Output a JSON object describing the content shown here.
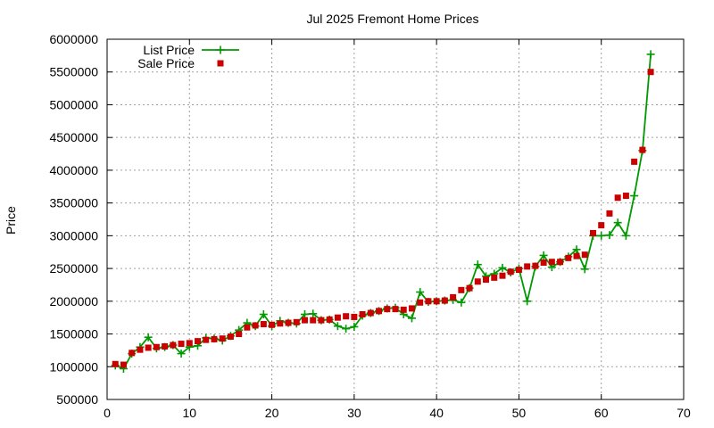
{
  "chart_data": {
    "type": "line",
    "title": "Jul 2025 Fremont Home Prices",
    "xlabel": "",
    "ylabel": "Price",
    "xlim": [
      0,
      70
    ],
    "ylim": [
      500000,
      6000000
    ],
    "xticks": [
      0,
      10,
      20,
      30,
      40,
      50,
      60,
      70
    ],
    "yticks": [
      500000,
      1000000,
      1500000,
      2000000,
      2500000,
      3000000,
      3500000,
      4000000,
      4500000,
      5000000,
      5500000,
      6000000
    ],
    "grid": true,
    "legend_position": "top-left",
    "series": [
      {
        "name": "List Price",
        "style": "line-with-plus-markers",
        "color": "#009900",
        "x": [
          1,
          2,
          3,
          4,
          5,
          6,
          7,
          8,
          9,
          10,
          11,
          12,
          13,
          14,
          15,
          16,
          17,
          18,
          19,
          20,
          21,
          22,
          23,
          24,
          25,
          26,
          27,
          28,
          29,
          30,
          31,
          32,
          33,
          34,
          35,
          36,
          37,
          38,
          39,
          40,
          41,
          42,
          43,
          44,
          45,
          46,
          47,
          48,
          49,
          50,
          51,
          52,
          53,
          54,
          55,
          56,
          57,
          58,
          59,
          60,
          61,
          62,
          63,
          64,
          65,
          66
        ],
        "values": [
          1020000,
          970000,
          1200000,
          1300000,
          1450000,
          1280000,
          1300000,
          1330000,
          1200000,
          1300000,
          1320000,
          1440000,
          1430000,
          1400000,
          1470000,
          1560000,
          1670000,
          1620000,
          1800000,
          1620000,
          1700000,
          1670000,
          1660000,
          1800000,
          1810000,
          1710000,
          1720000,
          1620000,
          1580000,
          1610000,
          1780000,
          1820000,
          1850000,
          1890000,
          1900000,
          1800000,
          1740000,
          2140000,
          1990000,
          2000000,
          2010000,
          2020000,
          1980000,
          2200000,
          2560000,
          2380000,
          2420000,
          2510000,
          2440000,
          2500000,
          2000000,
          2530000,
          2700000,
          2520000,
          2600000,
          2680000,
          2790000,
          2490000,
          3000000,
          3000000,
          3010000,
          3200000,
          3000000,
          3610000,
          4300000,
          5770000
        ]
      },
      {
        "name": "Sale Price",
        "style": "square-markers",
        "color": "#cc0000",
        "x": [
          1,
          2,
          3,
          4,
          5,
          6,
          7,
          8,
          9,
          10,
          11,
          12,
          13,
          14,
          15,
          16,
          17,
          18,
          19,
          20,
          21,
          22,
          23,
          24,
          25,
          26,
          27,
          28,
          29,
          30,
          31,
          32,
          33,
          34,
          35,
          36,
          37,
          38,
          39,
          40,
          41,
          42,
          43,
          44,
          45,
          46,
          47,
          48,
          49,
          50,
          51,
          52,
          53,
          54,
          55,
          56,
          57,
          58,
          59,
          60,
          61,
          62,
          63,
          64,
          65,
          66
        ],
        "values": [
          1040000,
          1030000,
          1210000,
          1260000,
          1290000,
          1300000,
          1310000,
          1330000,
          1350000,
          1360000,
          1390000,
          1410000,
          1420000,
          1430000,
          1460000,
          1500000,
          1600000,
          1630000,
          1650000,
          1640000,
          1660000,
          1670000,
          1680000,
          1710000,
          1710000,
          1710000,
          1720000,
          1750000,
          1770000,
          1760000,
          1800000,
          1820000,
          1850000,
          1880000,
          1880000,
          1870000,
          1890000,
          1980000,
          2000000,
          2000000,
          2010000,
          2060000,
          2170000,
          2200000,
          2300000,
          2330000,
          2360000,
          2390000,
          2450000,
          2480000,
          2530000,
          2540000,
          2590000,
          2600000,
          2600000,
          2660000,
          2690000,
          2710000,
          3040000,
          3160000,
          3340000,
          3580000,
          3610000,
          4130000,
          4310000,
          5500000
        ]
      }
    ]
  }
}
